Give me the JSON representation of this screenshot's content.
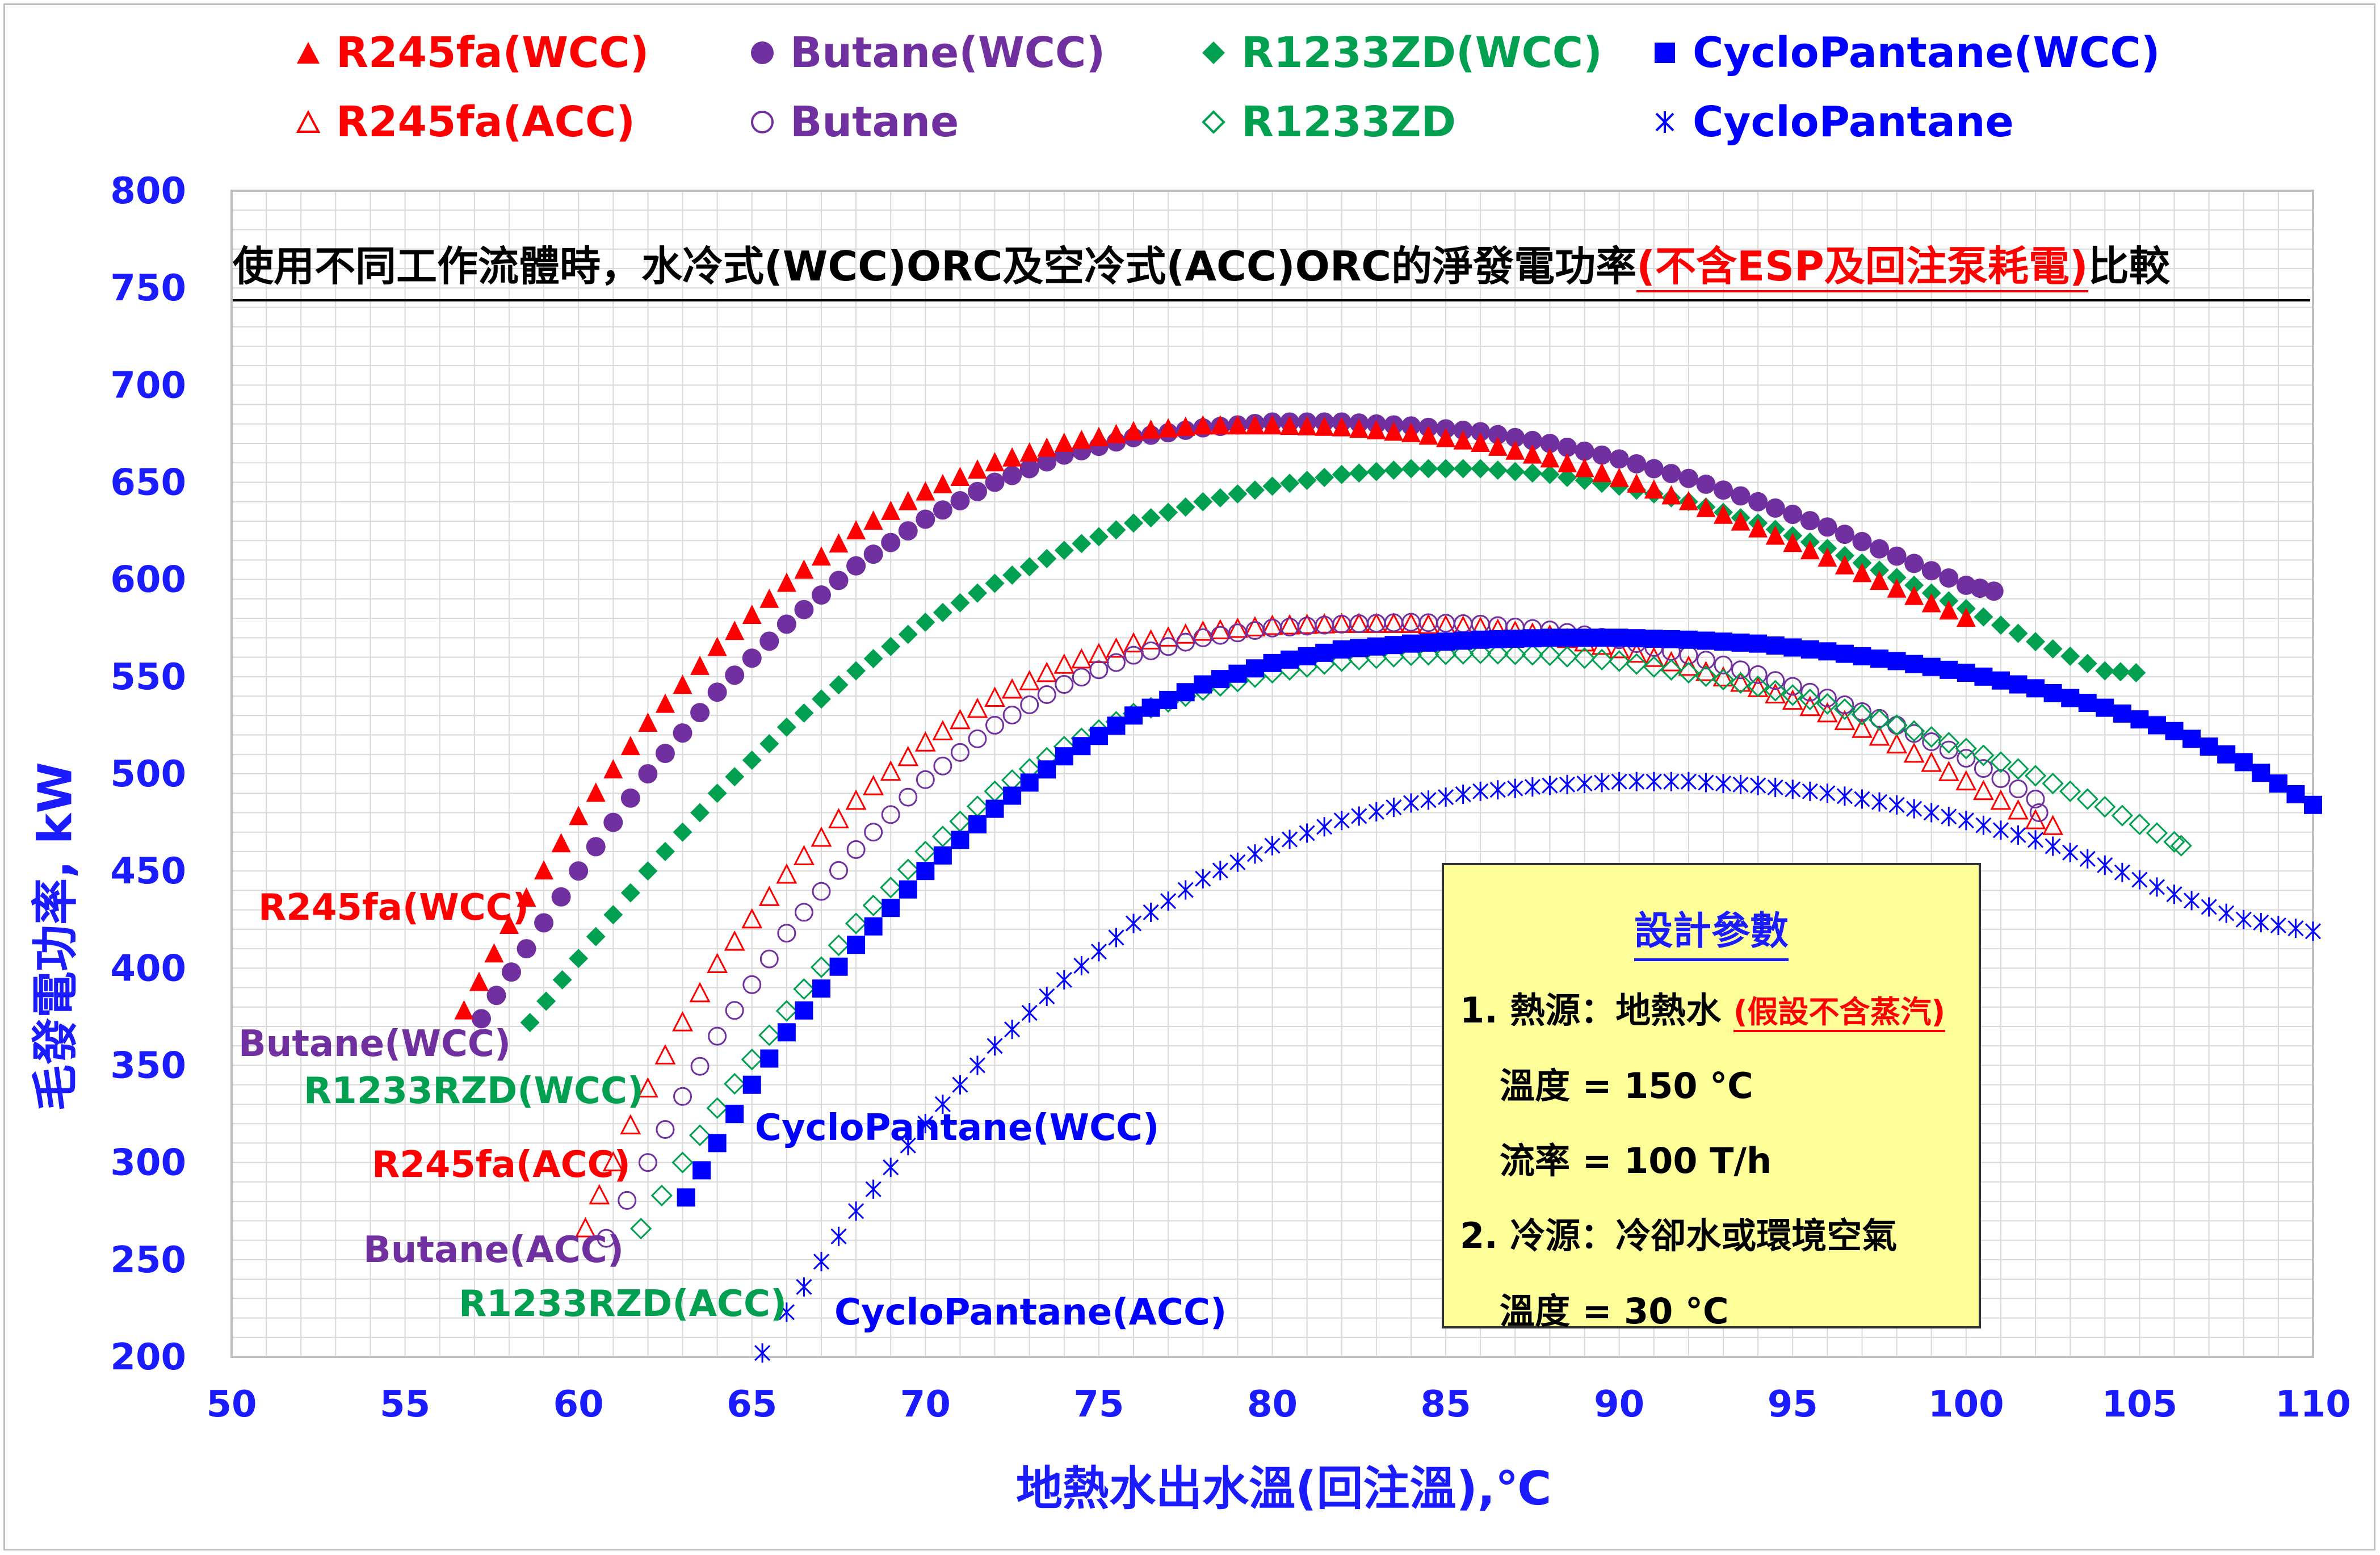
{
  "colors": {
    "r245fa": "#ff0000",
    "butane": "#7030a0",
    "r1233zd": "#00a050",
    "cyclopantane": "#0000ff",
    "axis_text": "#1b1bff",
    "grid": "#d9d9d9",
    "box": "#ffff99"
  },
  "legend": [
    {
      "label": "R245fa(WCC)",
      "series": "r245fa_wcc"
    },
    {
      "label": "Butane(WCC)",
      "series": "butane_wcc"
    },
    {
      "label": "R1233ZD(WCC)",
      "series": "r1233zd_wcc"
    },
    {
      "label": "CycloPantane(WCC)",
      "series": "cyclo_wcc"
    },
    {
      "label": "R245fa(ACC)",
      "series": "r245fa_acc"
    },
    {
      "label": "Butane",
      "series": "butane_acc"
    },
    {
      "label": "R1233ZD",
      "series": "r1233zd_acc"
    },
    {
      "label": "CycloPantane",
      "series": "cyclo_acc"
    }
  ],
  "annotations": {
    "r245fa_wcc": "R245fa(WCC)",
    "butane_wcc": "Butane(WCC)",
    "r1233zd_wcc": "R1233RZD(WCC)",
    "r245fa_acc": "R245fa(ACC)",
    "butane_acc": "Butane(ACC)",
    "r1233zd_acc": "R1233RZD(ACC)",
    "cyclo_wcc": "CycloPantane(WCC)",
    "cyclo_acc": "CycloPantane(ACC)"
  },
  "param_box": {
    "title": "設計參數",
    "line1": "1. 熱源：地熱水",
    "line1_note": "(假設不含蒸汽)",
    "line2": "溫度 = 150 °C",
    "line3": "流率 = 100 T/h",
    "line4": "2. 冷源：冷卻水或環境空氣",
    "line5": "溫度 = 30 °C"
  },
  "chart_data": {
    "type": "scatter",
    "title_main": "使用不同工作流體時，水冷式(WCC)ORC及空冷式(ACC)ORC的淨發電功率",
    "title_note": "(不含ESP及回注泵耗電)",
    "title_end": "比較",
    "xlabel": "地熱水出水溫(回注溫),℃",
    "ylabel": "毛發電功率, kW",
    "xlim": [
      50,
      110
    ],
    "ylim": [
      200,
      800
    ],
    "xticks": [
      50,
      55,
      60,
      65,
      70,
      75,
      80,
      85,
      90,
      95,
      100,
      105,
      110
    ],
    "yticks": [
      200,
      250,
      300,
      350,
      400,
      450,
      500,
      550,
      600,
      650,
      700,
      750,
      800
    ],
    "grid": true,
    "legend_position": "top",
    "series": [
      {
        "name": "R245fa(WCC)",
        "key": "r245fa_wcc",
        "color": "r245fa",
        "marker": "triangle-filled",
        "points": [
          [
            56.7,
            378
          ],
          [
            58,
            422
          ],
          [
            60,
            478
          ],
          [
            62,
            526
          ],
          [
            64,
            565
          ],
          [
            66,
            598
          ],
          [
            68,
            625
          ],
          [
            70,
            645
          ],
          [
            72,
            660
          ],
          [
            74,
            670
          ],
          [
            76,
            676
          ],
          [
            78,
            679
          ],
          [
            80,
            679
          ],
          [
            82,
            678
          ],
          [
            84,
            675
          ],
          [
            86,
            670
          ],
          [
            88,
            662
          ],
          [
            90,
            652
          ],
          [
            92,
            640
          ],
          [
            94,
            626
          ],
          [
            96,
            611
          ],
          [
            98,
            595
          ],
          [
            100,
            580
          ]
        ]
      },
      {
        "name": "Butane(WCC)",
        "key": "butane_wcc",
        "color": "butane",
        "marker": "circle-filled",
        "points": [
          [
            57.2,
            374
          ],
          [
            58.5,
            410
          ],
          [
            60,
            450
          ],
          [
            62,
            500
          ],
          [
            64,
            542
          ],
          [
            66,
            577
          ],
          [
            68,
            607
          ],
          [
            70,
            631
          ],
          [
            72,
            650
          ],
          [
            74,
            664
          ],
          [
            76,
            673
          ],
          [
            78,
            678
          ],
          [
            80,
            681
          ],
          [
            82,
            681
          ],
          [
            84,
            679
          ],
          [
            86,
            676
          ],
          [
            88,
            670
          ],
          [
            90,
            662
          ],
          [
            92,
            652
          ],
          [
            94,
            640
          ],
          [
            96,
            627
          ],
          [
            98,
            612
          ],
          [
            100,
            597
          ],
          [
            100.8,
            594
          ]
        ]
      },
      {
        "name": "R1233ZD(WCC)",
        "key": "r1233zd_wcc",
        "color": "r1233zd",
        "marker": "diamond-filled",
        "points": [
          [
            58.6,
            372
          ],
          [
            60,
            405
          ],
          [
            62,
            450
          ],
          [
            64,
            490
          ],
          [
            66,
            524
          ],
          [
            68,
            553
          ],
          [
            70,
            578
          ],
          [
            72,
            598
          ],
          [
            74,
            615
          ],
          [
            76,
            629
          ],
          [
            78,
            640
          ],
          [
            80,
            648
          ],
          [
            82,
            654
          ],
          [
            84,
            657
          ],
          [
            86,
            657
          ],
          [
            88,
            654
          ],
          [
            90,
            648
          ],
          [
            92,
            640
          ],
          [
            94,
            629
          ],
          [
            96,
            616
          ],
          [
            98,
            601
          ],
          [
            100,
            585
          ],
          [
            102,
            568
          ],
          [
            104,
            553
          ],
          [
            104.9,
            552
          ]
        ]
      },
      {
        "name": "CycloPantane(WCC)",
        "key": "cyclo_wcc",
        "color": "cyclopantane",
        "marker": "square-filled",
        "points": [
          [
            63.1,
            282
          ],
          [
            64,
            310
          ],
          [
            65,
            340
          ],
          [
            66,
            367
          ],
          [
            68,
            412
          ],
          [
            70,
            450
          ],
          [
            72,
            482
          ],
          [
            74,
            509
          ],
          [
            76,
            530
          ],
          [
            78,
            546
          ],
          [
            80,
            557
          ],
          [
            82,
            564
          ],
          [
            84,
            567
          ],
          [
            86,
            569
          ],
          [
            88,
            570
          ],
          [
            90,
            570
          ],
          [
            92,
            569
          ],
          [
            94,
            567
          ],
          [
            96,
            563
          ],
          [
            98,
            558
          ],
          [
            100,
            552
          ],
          [
            102,
            544
          ],
          [
            104,
            534
          ],
          [
            106,
            522
          ],
          [
            108,
            506
          ],
          [
            110,
            484
          ]
        ]
      },
      {
        "name": "R245fa(ACC)",
        "key": "r245fa_acc",
        "color": "r245fa",
        "marker": "triangle-open",
        "points": [
          [
            60.2,
            266
          ],
          [
            61,
            300
          ],
          [
            62,
            338
          ],
          [
            63,
            372
          ],
          [
            64,
            402
          ],
          [
            66,
            448
          ],
          [
            68,
            486
          ],
          [
            70,
            516
          ],
          [
            72,
            539
          ],
          [
            74,
            556
          ],
          [
            76,
            567
          ],
          [
            78,
            573
          ],
          [
            80,
            576
          ],
          [
            82,
            577
          ],
          [
            84,
            577
          ],
          [
            86,
            575
          ],
          [
            88,
            571
          ],
          [
            90,
            564
          ],
          [
            92,
            555
          ],
          [
            94,
            544
          ],
          [
            96,
            531
          ],
          [
            98,
            515
          ],
          [
            100,
            496
          ],
          [
            102,
            476
          ],
          [
            102.5,
            473
          ]
        ]
      },
      {
        "name": "Butane",
        "key": "butane_acc",
        "color": "butane",
        "marker": "circle-open",
        "points": [
          [
            60.8,
            261
          ],
          [
            62,
            300
          ],
          [
            63,
            334
          ],
          [
            64,
            365
          ],
          [
            66,
            418
          ],
          [
            68,
            461
          ],
          [
            70,
            497
          ],
          [
            72,
            525
          ],
          [
            74,
            546
          ],
          [
            76,
            561
          ],
          [
            78,
            570
          ],
          [
            80,
            575
          ],
          [
            82,
            577
          ],
          [
            84,
            578
          ],
          [
            86,
            577
          ],
          [
            88,
            574
          ],
          [
            90,
            569
          ],
          [
            92,
            561
          ],
          [
            94,
            551
          ],
          [
            96,
            539
          ],
          [
            98,
            525
          ],
          [
            100,
            508
          ],
          [
            102,
            487
          ],
          [
            102.1,
            480
          ]
        ]
      },
      {
        "name": "R1233ZD",
        "key": "r1233zd_acc",
        "color": "r1233zd",
        "marker": "diamond-open",
        "points": [
          [
            61.8,
            266
          ],
          [
            63,
            300
          ],
          [
            64,
            328
          ],
          [
            66,
            378
          ],
          [
            68,
            423
          ],
          [
            70,
            460
          ],
          [
            72,
            491
          ],
          [
            74,
            514
          ],
          [
            76,
            531
          ],
          [
            78,
            543
          ],
          [
            80,
            552
          ],
          [
            82,
            558
          ],
          [
            84,
            561
          ],
          [
            86,
            562
          ],
          [
            88,
            561
          ],
          [
            90,
            558
          ],
          [
            92,
            552
          ],
          [
            94,
            545
          ],
          [
            96,
            536
          ],
          [
            98,
            525
          ],
          [
            100,
            513
          ],
          [
            102,
            499
          ],
          [
            104,
            483
          ],
          [
            106,
            465
          ],
          [
            106.2,
            463
          ]
        ]
      },
      {
        "name": "CycloPantane",
        "key": "cyclo_acc",
        "color": "cyclopantane",
        "marker": "star",
        "points": [
          [
            65.3,
            202
          ],
          [
            66,
            223
          ],
          [
            68,
            275
          ],
          [
            70,
            320
          ],
          [
            72,
            360
          ],
          [
            74,
            394
          ],
          [
            76,
            423
          ],
          [
            78,
            446
          ],
          [
            80,
            463
          ],
          [
            82,
            476
          ],
          [
            84,
            485
          ],
          [
            86,
            491
          ],
          [
            88,
            494
          ],
          [
            90,
            496
          ],
          [
            92,
            496
          ],
          [
            94,
            494
          ],
          [
            96,
            490
          ],
          [
            98,
            484
          ],
          [
            100,
            476
          ],
          [
            102,
            466
          ],
          [
            104,
            453
          ],
          [
            106,
            438
          ],
          [
            108,
            425
          ],
          [
            110,
            419
          ]
        ]
      }
    ]
  }
}
